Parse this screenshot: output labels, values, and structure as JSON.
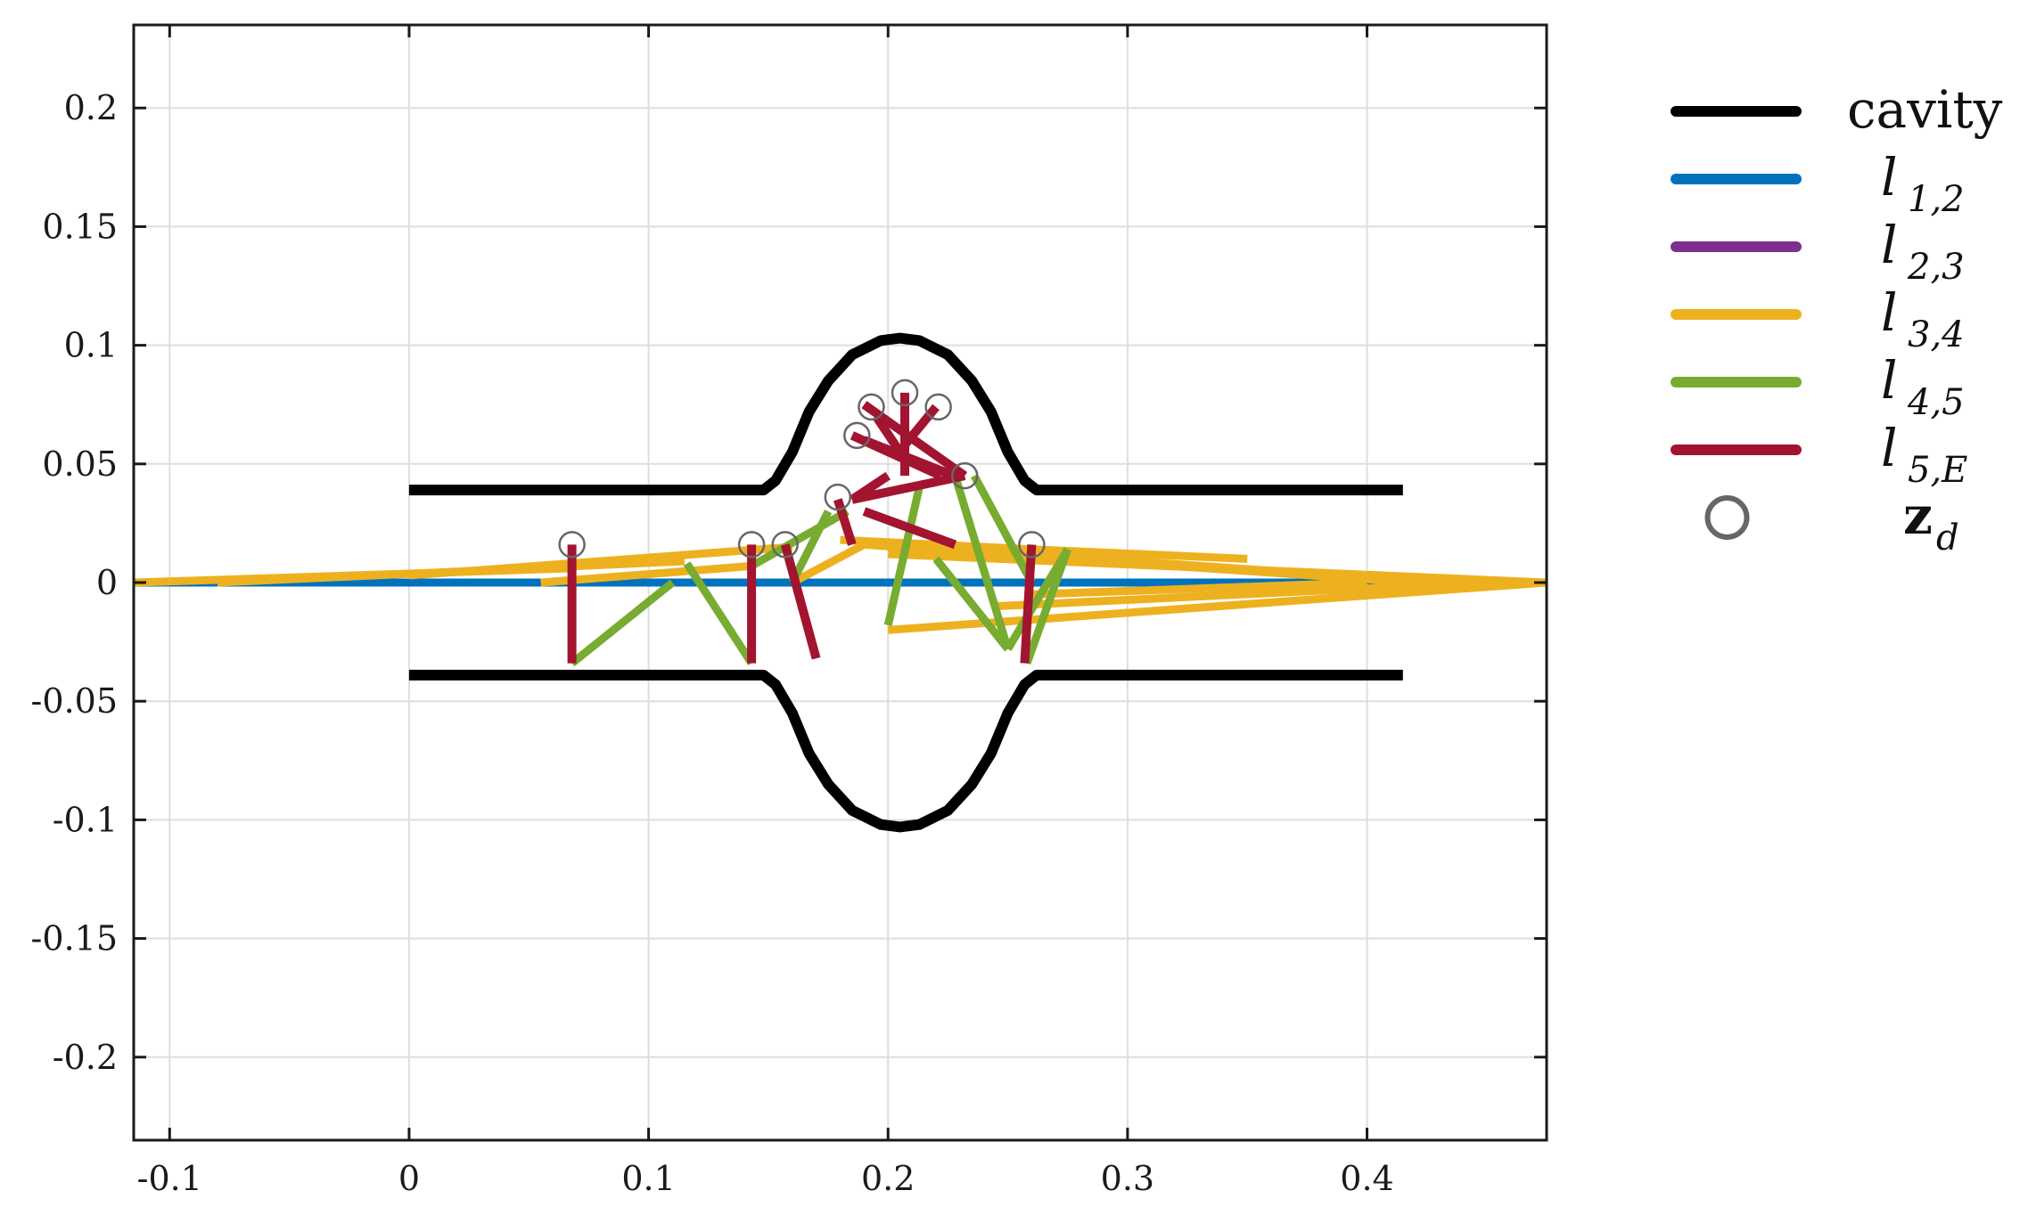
{
  "chart_data": {
    "type": "line",
    "xlim": [
      -0.115,
      0.475
    ],
    "ylim": [
      -0.235,
      0.235
    ],
    "grid": true,
    "legend_position": "outside-right",
    "xticks": [
      -0.1,
      0,
      0.1,
      0.2,
      0.3,
      0.4
    ],
    "xtick_labels": [
      "-0.1",
      "0",
      "0.1",
      "0.2",
      "0.3",
      "0.4"
    ],
    "yticks": [
      0.2,
      0.15,
      0.1,
      0.05,
      0,
      -0.05,
      -0.1,
      -0.15,
      -0.2
    ],
    "ytick_labels": [
      "0.2",
      "0.15",
      "0.1",
      "0.05",
      "0",
      "-0.05",
      "-0.1",
      "-0.15",
      "-0.2"
    ],
    "legend": [
      {
        "key": "cavity",
        "label": "cavity",
        "color": "#000000"
      },
      {
        "key": "l12",
        "label": "l",
        "sub": "1,2",
        "color": "#0072BD"
      },
      {
        "key": "l23",
        "label": "l",
        "sub": "2,3",
        "color": "#7E2F8E"
      },
      {
        "key": "l34",
        "label": "l",
        "sub": "3,4",
        "color": "#EDB120"
      },
      {
        "key": "l45",
        "label": "l",
        "sub": "4,5",
        "color": "#77AC30"
      },
      {
        "key": "l5E",
        "label": "l",
        "sub": "5,E",
        "color": "#A2142F"
      },
      {
        "key": "zd",
        "label": "z",
        "sub": "d",
        "color": "#666666"
      }
    ],
    "series": [
      {
        "name": "cavity",
        "color": "#000000",
        "width": 12,
        "segments": [
          [
            [
              0.0,
              0.039
            ],
            [
              0.148,
              0.039
            ],
            [
              0.153,
              0.043
            ],
            [
              0.16,
              0.055
            ],
            [
              0.167,
              0.072
            ],
            [
              0.175,
              0.085
            ],
            [
              0.185,
              0.096
            ],
            [
              0.197,
              0.102
            ],
            [
              0.205,
              0.103
            ],
            [
              0.213,
              0.102
            ],
            [
              0.225,
              0.096
            ],
            [
              0.235,
              0.085
            ],
            [
              0.243,
              0.072
            ],
            [
              0.25,
              0.055
            ],
            [
              0.257,
              0.043
            ],
            [
              0.262,
              0.039
            ],
            [
              0.415,
              0.039
            ]
          ],
          [
            [
              0.0,
              -0.039
            ],
            [
              0.148,
              -0.039
            ],
            [
              0.153,
              -0.043
            ],
            [
              0.16,
              -0.055
            ],
            [
              0.167,
              -0.072
            ],
            [
              0.175,
              -0.085
            ],
            [
              0.185,
              -0.096
            ],
            [
              0.197,
              -0.102
            ],
            [
              0.205,
              -0.103
            ],
            [
              0.213,
              -0.102
            ],
            [
              0.225,
              -0.096
            ],
            [
              0.235,
              -0.085
            ],
            [
              0.243,
              -0.072
            ],
            [
              0.25,
              -0.055
            ],
            [
              0.257,
              -0.043
            ],
            [
              0.262,
              -0.039
            ],
            [
              0.415,
              -0.039
            ]
          ]
        ]
      },
      {
        "name": "l12",
        "color": "#0072BD",
        "width": 9,
        "segments": [
          [
            [
              -0.115,
              0.0
            ],
            [
              0.0,
              0.0
            ],
            [
              0.055,
              0.0
            ]
          ],
          [
            [
              0.0,
              0.0
            ],
            [
              0.4,
              0.0
            ],
            [
              0.475,
              0.0
            ]
          ],
          [
            [
              0.38,
              0.0
            ],
            [
              0.475,
              0.0
            ]
          ]
        ]
      },
      {
        "name": "l23",
        "color": "#7E2F8E",
        "width": 9,
        "segments": []
      },
      {
        "name": "l34",
        "color": "#EDB120",
        "width": 9,
        "segments": [
          [
            [
              -0.115,
              0.0
            ],
            [
              0.068,
              0.006
            ]
          ],
          [
            [
              -0.08,
              0.0
            ],
            [
              0.115,
              0.009
            ]
          ],
          [
            [
              0.055,
              0.0
            ],
            [
              0.143,
              0.007
            ]
          ],
          [
            [
              0.0,
              0.003
            ],
            [
              0.16,
              0.015
            ]
          ],
          [
            [
              0.16,
              0.0
            ],
            [
              0.19,
              0.016
            ]
          ],
          [
            [
              0.18,
              0.018
            ],
            [
              0.26,
              0.014
            ],
            [
              0.35,
              0.01
            ]
          ],
          [
            [
              0.19,
              0.016
            ],
            [
              0.42,
              0.0
            ]
          ],
          [
            [
              0.2,
              0.012
            ],
            [
              0.475,
              0.0
            ]
          ],
          [
            [
              0.26,
              0.012
            ],
            [
              0.43,
              0.0
            ]
          ],
          [
            [
              0.2,
              -0.02
            ],
            [
              0.475,
              0.0
            ]
          ],
          [
            [
              0.245,
              -0.01
            ],
            [
              0.45,
              0.0
            ]
          ],
          [
            [
              0.26,
              -0.005
            ],
            [
              0.4,
              0.0
            ]
          ]
        ]
      },
      {
        "name": "l45",
        "color": "#77AC30",
        "width": 9,
        "segments": [
          [
            [
              0.068,
              -0.034
            ],
            [
              0.11,
              0.0
            ]
          ],
          [
            [
              0.116,
              0.008
            ],
            [
              0.143,
              -0.034
            ]
          ],
          [
            [
              0.143,
              0.007
            ],
            [
              0.183,
              0.03
            ]
          ],
          [
            [
              0.16,
              0.0
            ],
            [
              0.175,
              0.03
            ]
          ],
          [
            [
              0.2,
              -0.018
            ],
            [
              0.213,
              0.04
            ]
          ],
          [
            [
              0.228,
              0.045
            ],
            [
              0.25,
              -0.028
            ]
          ],
          [
            [
              0.236,
              0.045
            ],
            [
              0.26,
              0.0
            ]
          ],
          [
            [
              0.22,
              0.01
            ],
            [
              0.25,
              -0.028
            ]
          ],
          [
            [
              0.25,
              -0.028
            ],
            [
              0.275,
              0.014
            ]
          ],
          [
            [
              0.258,
              -0.034
            ],
            [
              0.275,
              0.014
            ]
          ]
        ]
      },
      {
        "name": "l5E",
        "color": "#A2142F",
        "width": 10,
        "segments": [
          [
            [
              0.068,
              0.016
            ],
            [
              0.068,
              -0.034
            ]
          ],
          [
            [
              0.143,
              0.016
            ],
            [
              0.143,
              -0.034
            ]
          ],
          [
            [
              0.157,
              0.016
            ],
            [
              0.17,
              -0.032
            ]
          ],
          [
            [
              0.179,
              0.035
            ],
            [
              0.185,
              0.016
            ]
          ],
          [
            [
              0.19,
              0.06
            ],
            [
              0.23,
              0.044
            ]
          ],
          [
            [
              0.195,
              0.07
            ],
            [
              0.205,
              0.055
            ]
          ],
          [
            [
              0.207,
              0.08
            ],
            [
              0.207,
              0.045
            ]
          ],
          [
            [
              0.207,
              0.058
            ],
            [
              0.22,
              0.074
            ]
          ],
          [
            [
              0.19,
              0.075
            ],
            [
              0.232,
              0.045
            ]
          ],
          [
            [
              0.185,
              0.062
            ],
            [
              0.222,
              0.045
            ]
          ],
          [
            [
              0.185,
              0.035
            ],
            [
              0.232,
              0.045
            ]
          ],
          [
            [
              0.19,
              0.03
            ],
            [
              0.228,
              0.016
            ]
          ],
          [
            [
              0.2,
              0.045
            ],
            [
              0.185,
              0.035
            ]
          ],
          [
            [
              0.26,
              0.016
            ],
            [
              0.257,
              -0.034
            ]
          ]
        ]
      }
    ],
    "zd_points": [
      [
        0.068,
        0.016
      ],
      [
        0.143,
        0.016
      ],
      [
        0.157,
        0.016
      ],
      [
        0.179,
        0.036
      ],
      [
        0.187,
        0.062
      ],
      [
        0.193,
        0.074
      ],
      [
        0.207,
        0.08
      ],
      [
        0.221,
        0.074
      ],
      [
        0.232,
        0.045
      ],
      [
        0.26,
        0.016
      ]
    ]
  }
}
